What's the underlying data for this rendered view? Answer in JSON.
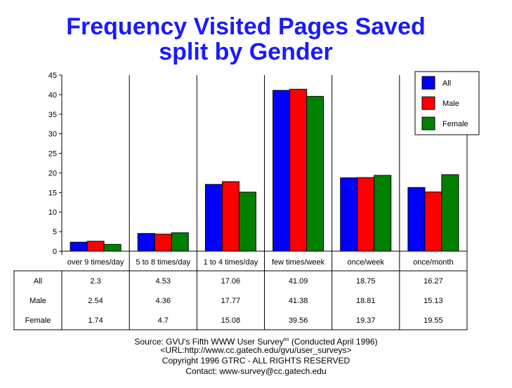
{
  "title_line1": "Frequency Visited Pages Saved",
  "title_line2": "split by Gender",
  "colors": {
    "All": "#0000ff",
    "Male": "#ff0000",
    "Female": "#008000"
  },
  "chart_data": {
    "type": "bar",
    "title": "Frequency Visited Pages Saved split by Gender",
    "categories": [
      "over 9 times/day",
      "5 to 8 times/day",
      "1 to 4 times/day",
      "few times/week",
      "once/week",
      "once/month"
    ],
    "series": [
      {
        "name": "All",
        "values": [
          2.3,
          4.53,
          17.06,
          41.09,
          18.75,
          16.27
        ]
      },
      {
        "name": "Male",
        "values": [
          2.54,
          4.36,
          17.77,
          41.38,
          18.81,
          15.13
        ]
      },
      {
        "name": "Female",
        "values": [
          1.74,
          4.7,
          15.08,
          39.56,
          19.37,
          19.55
        ]
      }
    ],
    "ylim": [
      0,
      45
    ],
    "yticks": [
      0,
      5,
      10,
      15,
      20,
      25,
      30,
      35,
      40,
      45
    ],
    "grid": "vertical separators between categories",
    "legend": {
      "placement": "top-right",
      "entries": [
        "All",
        "Male",
        "Female"
      ]
    },
    "table_value_labels": {
      "All": [
        "2.3",
        "4.53",
        "17.06",
        "41.09",
        "18.75",
        "16.27"
      ],
      "Male": [
        "2.54",
        "4.36",
        "17.77",
        "41.38",
        "18.81",
        "15.13"
      ],
      "Female": [
        "1.74",
        "4.7",
        "15.08",
        "39.56",
        "19.37",
        "19.55"
      ]
    }
  },
  "footer": {
    "source_pre": "Source: GVU's Fifth WWW User Survey",
    "source_sup": "tm",
    "source_post": "  (Conducted April 1996)",
    "url": "<URL:http://www.cc.gatech.edu/gvu/user_surveys>",
    "copyright": "Copyright 1996 GTRC -  ALL RIGHTS RESERVED",
    "contact": "Contact: www-survey@cc.gatech.edu"
  }
}
